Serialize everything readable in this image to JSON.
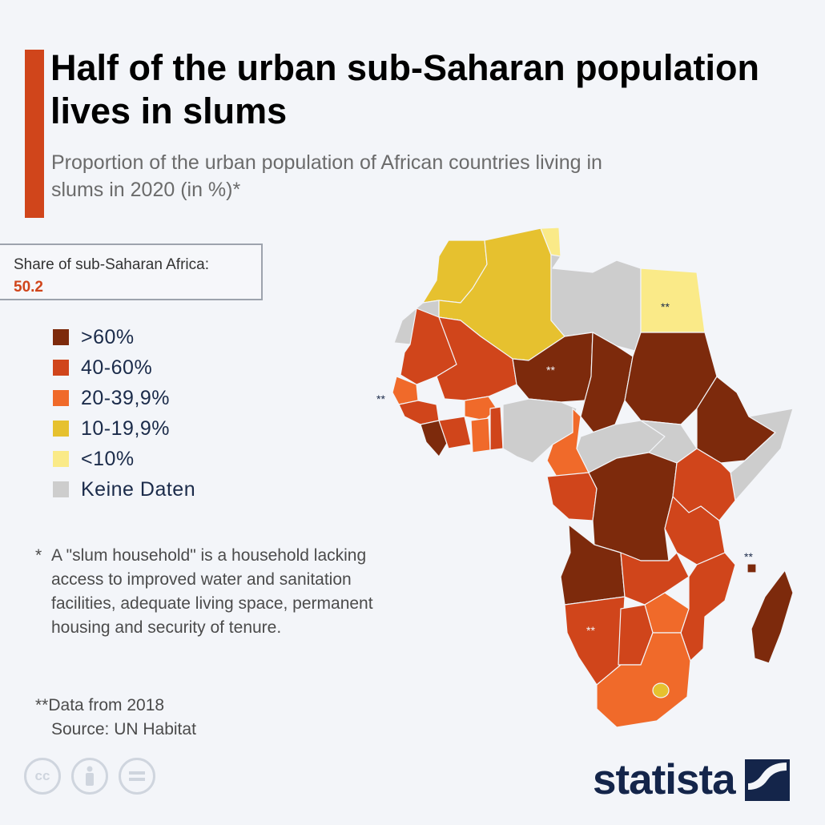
{
  "title": "Half of the urban sub-Saharan population lives in slums",
  "subtitle": "Proportion of the urban population of African countries living in slums in 2020 (in %)*",
  "share_box": {
    "label": "Share of sub-Saharan Africa:",
    "value": "50.2"
  },
  "legend": [
    {
      "label": ">60%",
      "color": "#7d2a0c"
    },
    {
      "label": "40-60%",
      "color": "#d0451b"
    },
    {
      "label": "20-39,9%",
      "color": "#f06a2a"
    },
    {
      "label": "10-19,9%",
      "color": "#e6c12f"
    },
    {
      "label": "<10%",
      "color": "#faea88"
    },
    {
      "label": "Keine Daten",
      "color": "#cdcdcd"
    }
  ],
  "footnote": {
    "star": "*",
    "text": "A \"slum household\" is a household lacking access to improved water and sanitation facilities, adequate living space, permanent housing and security of tenure."
  },
  "footnote2": "**Data from 2018",
  "source": "Source: UN Habitat",
  "map_annotations": {
    "egypt": "**",
    "chad": "**",
    "guinea_bissau": "**",
    "namibia": "**",
    "mauritius": "**"
  },
  "brand": {
    "name": "statista",
    "accent": "#d0451b",
    "dark": "#14254a"
  },
  "icons": [
    "cc-icon",
    "person-icon",
    "equals-icon",
    "statista-logo-icon"
  ]
}
